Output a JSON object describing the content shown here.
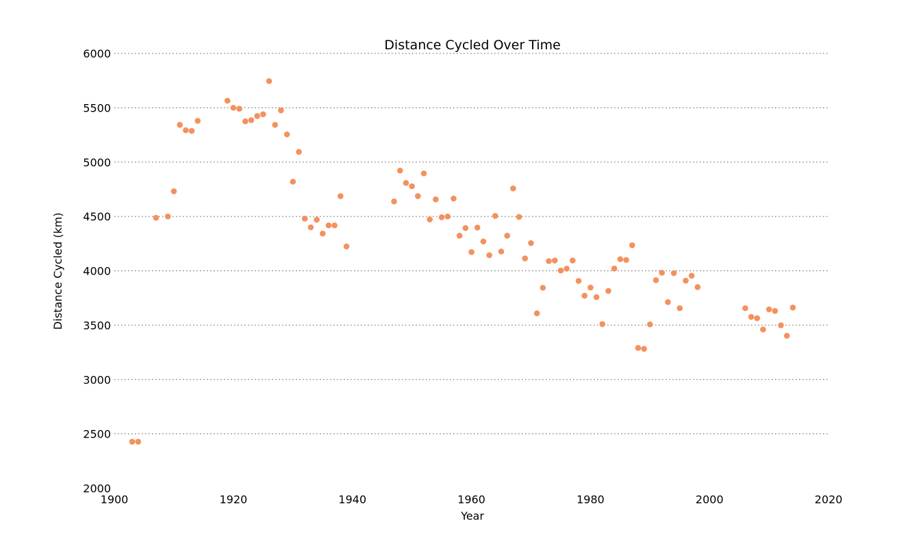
{
  "chart_data": {
    "type": "scatter",
    "title": "Distance Cycled Over Time",
    "xlabel": "Year",
    "ylabel": "Distance Cycled (km)",
    "xlim": [
      1900,
      2020
    ],
    "ylim": [
      2000,
      6000
    ],
    "xticks": [
      1900,
      1920,
      1940,
      1960,
      1980,
      2000,
      2020
    ],
    "yticks": [
      2000,
      2500,
      3000,
      3500,
      4000,
      4500,
      5000,
      5500,
      6000
    ],
    "grid": "y-dotted",
    "marker_color": "#f4915e",
    "x": [
      1903,
      1904,
      1907,
      1909,
      1910,
      1911,
      1912,
      1913,
      1914,
      1919,
      1920,
      1921,
      1922,
      1923,
      1924,
      1925,
      1926,
      1927,
      1928,
      1929,
      1930,
      1931,
      1932,
      1933,
      1934,
      1935,
      1936,
      1937,
      1938,
      1939,
      1947,
      1948,
      1949,
      1950,
      1951,
      1952,
      1953,
      1954,
      1955,
      1956,
      1957,
      1958,
      1959,
      1960,
      1961,
      1962,
      1963,
      1964,
      1965,
      1966,
      1967,
      1968,
      1969,
      1970,
      1971,
      1972,
      1973,
      1974,
      1975,
      1976,
      1977,
      1978,
      1979,
      1980,
      1981,
      1982,
      1983,
      1984,
      1985,
      1986,
      1987,
      1988,
      1989,
      1990,
      1991,
      1992,
      1993,
      1994,
      1995,
      1996,
      1997,
      1998,
      2006,
      2007,
      2008,
      2009,
      2010,
      2011,
      2012,
      2013,
      2014
    ],
    "y": [
      2428,
      2428,
      4488,
      4500,
      4732,
      5343,
      5293,
      5287,
      5380,
      5565,
      5500,
      5491,
      5375,
      5386,
      5424,
      5440,
      5745,
      5343,
      5476,
      5255,
      4820,
      5094,
      4480,
      4400,
      4470,
      4343,
      4418,
      4418,
      4687,
      4224,
      4638,
      4922,
      4808,
      4778,
      4687,
      4896,
      4473,
      4657,
      4493,
      4500,
      4665,
      4323,
      4393,
      4172,
      4398,
      4270,
      4144,
      4505,
      4178,
      4323,
      4758,
      4496,
      4114,
      4255,
      3609,
      3844,
      4089,
      4095,
      4003,
      4020,
      4095,
      3907,
      3771,
      3846,
      3758,
      3510,
      3815,
      4021,
      4107,
      4100,
      4235,
      3291,
      3282,
      3507,
      3914,
      3982,
      3712,
      3979,
      3656,
      3910,
      3955,
      3850,
      3656,
      3576,
      3564,
      3460,
      3645,
      3631,
      3499,
      3403,
      3662
    ]
  }
}
